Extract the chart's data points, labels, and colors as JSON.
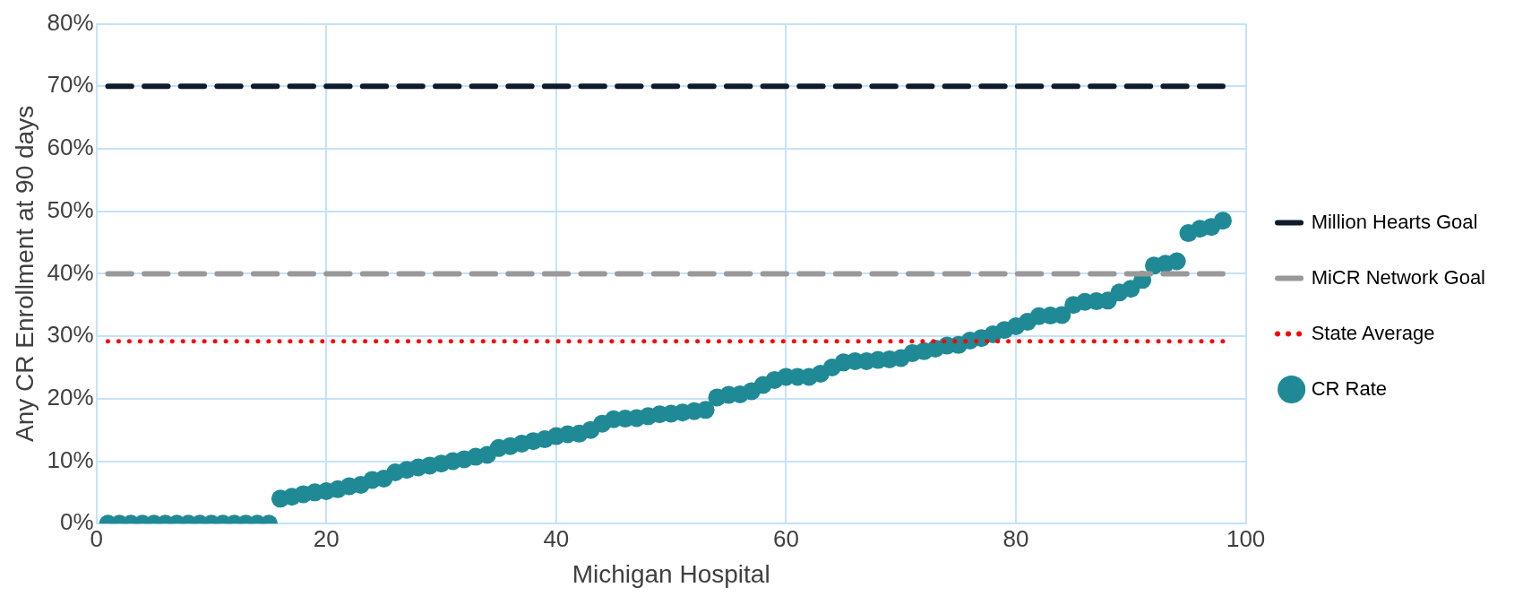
{
  "chart_data": {
    "type": "scatter",
    "xlabel": "Michigan Hospital",
    "ylabel": "Any CR Enrollment at 90 days",
    "xlim": [
      0,
      100
    ],
    "xticks": [
      0,
      20,
      40,
      60,
      80,
      100
    ],
    "ylim": [
      0,
      80
    ],
    "yticks": [
      {
        "value": 0,
        "label": "0%"
      },
      {
        "value": 10,
        "label": "10%"
      },
      {
        "value": 20,
        "label": "20%"
      },
      {
        "value": 30,
        "label": "30%"
      },
      {
        "value": 40,
        "label": "40%"
      },
      {
        "value": 50,
        "label": "50%"
      },
      {
        "value": 60,
        "label": "60%"
      },
      {
        "value": 70,
        "label": "70%"
      },
      {
        "value": 80,
        "label": "80%"
      }
    ],
    "grid": true,
    "legend": "right",
    "series": [
      {
        "name": "Million Hearts Goal",
        "type": "line",
        "color": "#0d1b2a",
        "line_style": "dashed",
        "marker": "none",
        "x": [
          1,
          98
        ],
        "values": [
          70,
          70
        ]
      },
      {
        "name": "MiCR Network Goal",
        "type": "line",
        "color": "#999999",
        "line_style": "dashed",
        "marker": "none",
        "x": [
          1,
          98
        ],
        "values": [
          40,
          40
        ]
      },
      {
        "name": "State Average",
        "type": "line",
        "color": "#ff0000",
        "line_style": "dotted",
        "marker": "none",
        "x": [
          1,
          98
        ],
        "values": [
          29.2,
          29.2
        ]
      },
      {
        "name": "CR Rate",
        "type": "scatter",
        "color": "#1f8a96",
        "marker": "circle",
        "x": [
          1,
          2,
          3,
          4,
          5,
          6,
          7,
          8,
          9,
          10,
          11,
          12,
          13,
          14,
          15,
          16,
          17,
          18,
          19,
          20,
          21,
          22,
          23,
          24,
          25,
          26,
          27,
          28,
          29,
          30,
          31,
          32,
          33,
          34,
          35,
          36,
          37,
          38,
          39,
          40,
          41,
          42,
          43,
          44,
          45,
          46,
          47,
          48,
          49,
          50,
          51,
          52,
          53,
          54,
          55,
          56,
          57,
          58,
          59,
          60,
          61,
          62,
          63,
          64,
          65,
          66,
          67,
          68,
          69,
          70,
          71,
          72,
          73,
          74,
          75,
          76,
          77,
          78,
          79,
          80,
          81,
          82,
          83,
          84,
          85,
          86,
          87,
          88,
          89,
          90,
          91,
          92,
          93,
          94,
          95,
          96,
          97,
          98
        ],
        "values": [
          0,
          0,
          0,
          0,
          0,
          0,
          0,
          0,
          0,
          0,
          0,
          0,
          0,
          0,
          0,
          4.0,
          4.3,
          4.7,
          5.0,
          5.2,
          5.5,
          6.0,
          6.2,
          7.0,
          7.2,
          8.2,
          8.6,
          9.0,
          9.3,
          9.6,
          10.0,
          10.3,
          10.7,
          11.0,
          12.1,
          12.4,
          12.8,
          13.2,
          13.5,
          14.0,
          14.3,
          14.4,
          15.0,
          16.0,
          16.7,
          16.8,
          16.9,
          17.2,
          17.5,
          17.6,
          17.8,
          18.0,
          18.2,
          20.2,
          20.6,
          20.7,
          21.2,
          22.2,
          23.0,
          23.5,
          23.5,
          23.5,
          24.0,
          25.0,
          25.8,
          26.0,
          26.0,
          26.2,
          26.3,
          26.5,
          27.3,
          27.6,
          28.0,
          28.5,
          28.6,
          29.3,
          29.7,
          30.3,
          31.0,
          31.6,
          32.3,
          33.2,
          33.3,
          33.4,
          35.0,
          35.5,
          35.6,
          35.7,
          37.0,
          37.6,
          39.0,
          41.3,
          41.6,
          42.0,
          46.5,
          47.2,
          47.5,
          48.5
        ]
      }
    ]
  }
}
